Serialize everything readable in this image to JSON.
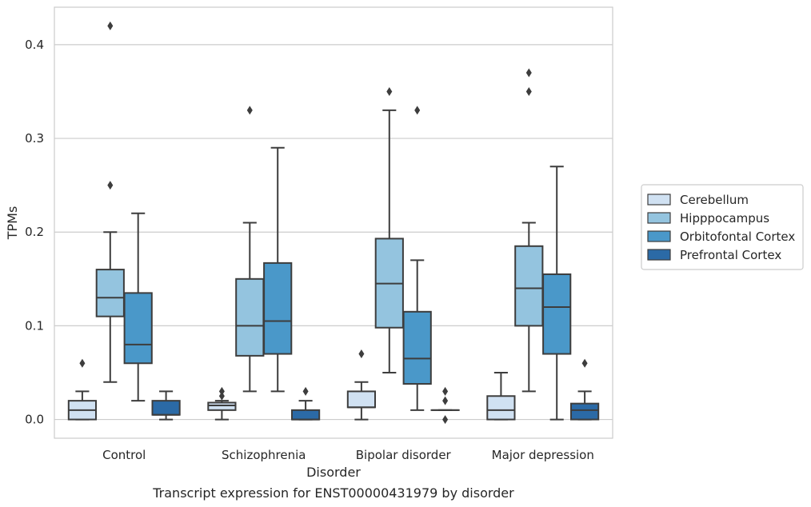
{
  "chart_data": {
    "type": "boxplot",
    "caption": "Transcript expression for ENST00000431979 by disorder",
    "xlabel": "Disorder",
    "ylabel": "TPMs",
    "ylim": [
      -0.02,
      0.44
    ],
    "yticks": [
      0.0,
      0.1,
      0.2,
      0.3,
      0.4
    ],
    "ytick_labels": [
      "0.0",
      "0.1",
      "0.2",
      "0.3",
      "0.4"
    ],
    "grid": "horizontal",
    "legend_position": "right",
    "categories": [
      "Control",
      "Schizophrenia",
      "Bipolar disorder",
      "Major depression"
    ],
    "series": [
      {
        "name": "Cerebellum",
        "color": "#d0e1f2",
        "boxes": [
          {
            "whislo": 0.0,
            "q1": 0.0,
            "med": 0.01,
            "q3": 0.02,
            "whishi": 0.03,
            "fliers": [
              0.06
            ]
          },
          {
            "whislo": 0.0,
            "q1": 0.01,
            "med": 0.015,
            "q3": 0.018,
            "whishi": 0.02,
            "fliers": [
              0.03,
              0.025
            ]
          },
          {
            "whislo": 0.0,
            "q1": 0.013,
            "med": 0.013,
            "q3": 0.03,
            "whishi": 0.04,
            "fliers": [
              0.07
            ]
          },
          {
            "whislo": 0.0,
            "q1": 0.0,
            "med": 0.01,
            "q3": 0.025,
            "whishi": 0.05,
            "fliers": []
          }
        ]
      },
      {
        "name": "Hipppocampus",
        "color": "#94c4df",
        "boxes": [
          {
            "whislo": 0.04,
            "q1": 0.11,
            "med": 0.13,
            "q3": 0.16,
            "whishi": 0.2,
            "fliers": [
              0.25,
              0.42
            ]
          },
          {
            "whislo": 0.03,
            "q1": 0.068,
            "med": 0.1,
            "q3": 0.15,
            "whishi": 0.21,
            "fliers": [
              0.33
            ]
          },
          {
            "whislo": 0.05,
            "q1": 0.098,
            "med": 0.145,
            "q3": 0.193,
            "whishi": 0.33,
            "fliers": [
              0.35
            ]
          },
          {
            "whislo": 0.03,
            "q1": 0.1,
            "med": 0.14,
            "q3": 0.185,
            "whishi": 0.21,
            "fliers": [
              0.35,
              0.37
            ]
          }
        ]
      },
      {
        "name": "Orbitofontal Cortex",
        "color": "#4a98c9",
        "boxes": [
          {
            "whislo": 0.02,
            "q1": 0.06,
            "med": 0.08,
            "q3": 0.135,
            "whishi": 0.22,
            "fliers": []
          },
          {
            "whislo": 0.03,
            "q1": 0.07,
            "med": 0.105,
            "q3": 0.167,
            "whishi": 0.29,
            "fliers": []
          },
          {
            "whislo": 0.01,
            "q1": 0.038,
            "med": 0.065,
            "q3": 0.115,
            "whishi": 0.17,
            "fliers": [
              0.33
            ]
          },
          {
            "whislo": 0.0,
            "q1": 0.07,
            "med": 0.12,
            "q3": 0.155,
            "whishi": 0.27,
            "fliers": []
          }
        ]
      },
      {
        "name": "Prefrontal Cortex",
        "color": "#2b6aa6",
        "boxes": [
          {
            "whislo": 0.0,
            "q1": 0.005,
            "med": 0.005,
            "q3": 0.02,
            "whishi": 0.03,
            "fliers": []
          },
          {
            "whislo": 0.0,
            "q1": 0.0,
            "med": 0.0,
            "q3": 0.01,
            "whishi": 0.02,
            "fliers": [
              0.03
            ]
          },
          {
            "whislo": 0.01,
            "q1": 0.01,
            "med": 0.01,
            "q3": 0.01,
            "whishi": 0.01,
            "fliers": [
              0.03,
              0.02,
              0.0
            ]
          },
          {
            "whislo": 0.0,
            "q1": 0.0,
            "med": 0.01,
            "q3": 0.017,
            "whishi": 0.03,
            "fliers": [
              0.06
            ]
          }
        ]
      }
    ]
  }
}
